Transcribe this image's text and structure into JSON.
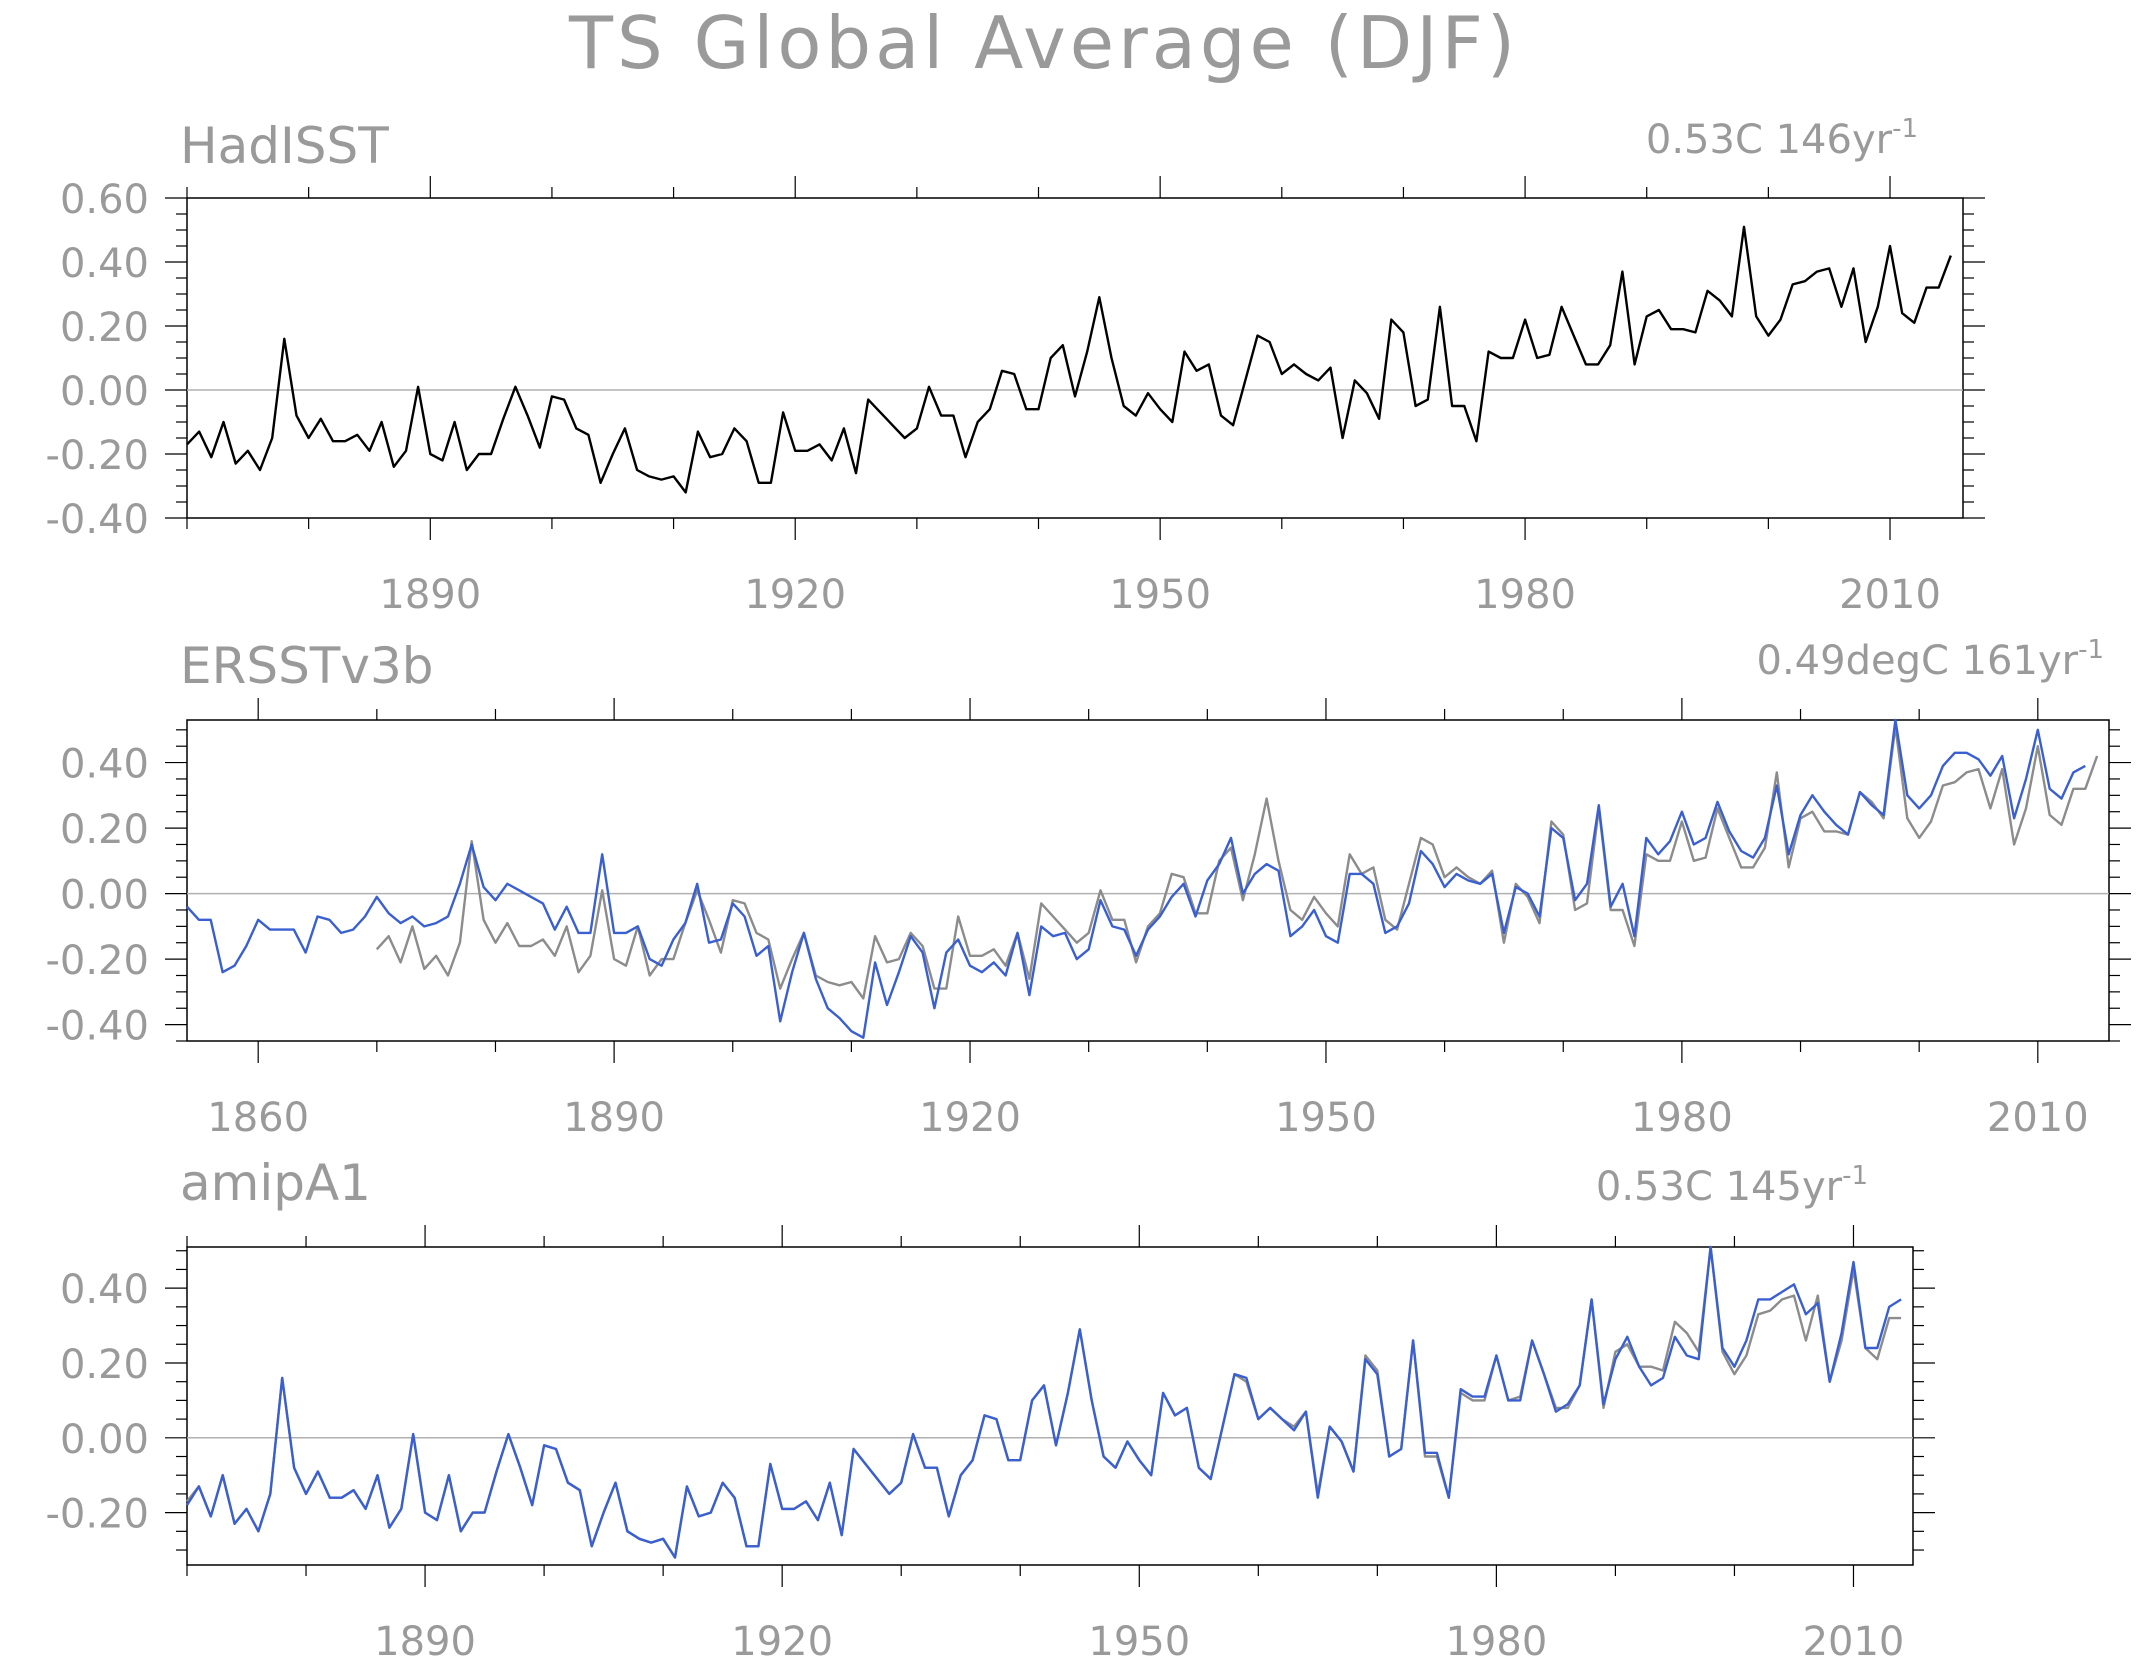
{
  "figure": {
    "title": "TS Global Average (DJF)",
    "colors": {
      "text": "#9a9a9a",
      "axis": "#000000",
      "zero_line": "#b0b0b0",
      "obs": "#000000",
      "obs_ref": "#8c8c8c",
      "model": "#3a5fd0"
    }
  },
  "chart_data": [
    {
      "type": "line",
      "title": "HadISST",
      "annotation": "0.53C 146yr",
      "annotation_superscript": "-1",
      "xlim": [
        1870,
        2016
      ],
      "ylim": [
        -0.4,
        0.6
      ],
      "yticks": [
        -0.4,
        -0.2,
        0.0,
        0.2,
        0.4,
        0.6
      ],
      "ytick_labels": [
        "-0.40",
        "-0.20",
        "0.00",
        "0.20",
        "0.40",
        "0.60"
      ],
      "xticks": [
        1890,
        1920,
        1950,
        1980,
        2010
      ],
      "xtick_labels": [
        "1890",
        "1920",
        "1950",
        "1980",
        "2010"
      ],
      "zero_line": true,
      "series": [
        {
          "color": "#000000",
          "x_start": 1870,
          "values": [
            -0.17,
            -0.13,
            -0.21,
            -0.1,
            -0.23,
            -0.19,
            -0.25,
            -0.15,
            0.16,
            -0.08,
            -0.15,
            -0.09,
            -0.16,
            -0.16,
            -0.14,
            -0.19,
            -0.1,
            -0.24,
            -0.19,
            0.01,
            -0.2,
            -0.22,
            -0.1,
            -0.25,
            -0.2,
            -0.2,
            -0.09,
            0.01,
            -0.08,
            -0.18,
            -0.02,
            -0.03,
            -0.12,
            -0.14,
            -0.29,
            -0.2,
            -0.12,
            -0.25,
            -0.27,
            -0.28,
            -0.27,
            -0.32,
            -0.13,
            -0.21,
            -0.2,
            -0.12,
            -0.16,
            -0.29,
            -0.29,
            -0.07,
            -0.19,
            -0.19,
            -0.17,
            -0.22,
            -0.12,
            -0.26,
            -0.03,
            -0.07,
            -0.11,
            -0.15,
            -0.12,
            0.01,
            -0.08,
            -0.08,
            -0.21,
            -0.1,
            -0.06,
            0.06,
            0.05,
            -0.06,
            -0.06,
            0.1,
            0.14,
            -0.02,
            0.12,
            0.29,
            0.1,
            -0.05,
            -0.08,
            -0.01,
            -0.06,
            -0.1,
            0.12,
            0.06,
            0.08,
            -0.08,
            -0.11,
            0.03,
            0.17,
            0.15,
            0.05,
            0.08,
            0.05,
            0.03,
            0.07,
            -0.15,
            0.03,
            -0.01,
            -0.09,
            0.22,
            0.18,
            -0.05,
            -0.03,
            0.26,
            -0.05,
            -0.05,
            -0.16,
            0.12,
            0.1,
            0.1,
            0.22,
            0.1,
            0.11,
            0.26,
            0.17,
            0.08,
            0.08,
            0.14,
            0.37,
            0.08,
            0.23,
            0.25,
            0.19,
            0.19,
            0.18,
            0.31,
            0.28,
            0.23,
            0.51,
            0.23,
            0.17,
            0.22,
            0.33,
            0.34,
            0.37,
            0.38,
            0.26,
            0.38,
            0.15,
            0.26,
            0.45,
            0.24,
            0.21,
            0.32,
            0.32,
            0.42
          ]
        }
      ]
    },
    {
      "type": "line",
      "title": "ERSSTv3b",
      "annotation": "0.49degC 161yr",
      "annotation_superscript": "-1",
      "xlim": [
        1854,
        2016
      ],
      "ylim": [
        -0.45,
        0.53
      ],
      "yticks": [
        -0.4,
        -0.2,
        0.0,
        0.2,
        0.4
      ],
      "ytick_labels": [
        "-0.40",
        "-0.20",
        "0.00",
        "0.20",
        "0.40"
      ],
      "xticks": [
        1860,
        1890,
        1920,
        1950,
        1980,
        2010
      ],
      "xtick_labels": [
        "1860",
        "1890",
        "1920",
        "1950",
        "1980",
        "2010"
      ],
      "zero_line": true,
      "series": [
        {
          "color": "#8c8c8c",
          "x_start": 1870,
          "values": [
            -0.17,
            -0.13,
            -0.21,
            -0.1,
            -0.23,
            -0.19,
            -0.25,
            -0.15,
            0.16,
            -0.08,
            -0.15,
            -0.09,
            -0.16,
            -0.16,
            -0.14,
            -0.19,
            -0.1,
            -0.24,
            -0.19,
            0.01,
            -0.2,
            -0.22,
            -0.1,
            -0.25,
            -0.2,
            -0.2,
            -0.09,
            0.01,
            -0.08,
            -0.18,
            -0.02,
            -0.03,
            -0.12,
            -0.14,
            -0.29,
            -0.2,
            -0.12,
            -0.25,
            -0.27,
            -0.28,
            -0.27,
            -0.32,
            -0.13,
            -0.21,
            -0.2,
            -0.12,
            -0.16,
            -0.29,
            -0.29,
            -0.07,
            -0.19,
            -0.19,
            -0.17,
            -0.22,
            -0.12,
            -0.26,
            -0.03,
            -0.07,
            -0.11,
            -0.15,
            -0.12,
            0.01,
            -0.08,
            -0.08,
            -0.21,
            -0.1,
            -0.06,
            0.06,
            0.05,
            -0.06,
            -0.06,
            0.1,
            0.14,
            -0.02,
            0.12,
            0.29,
            0.1,
            -0.05,
            -0.08,
            -0.01,
            -0.06,
            -0.1,
            0.12,
            0.06,
            0.08,
            -0.08,
            -0.11,
            0.03,
            0.17,
            0.15,
            0.05,
            0.08,
            0.05,
            0.03,
            0.07,
            -0.15,
            0.03,
            -0.01,
            -0.09,
            0.22,
            0.18,
            -0.05,
            -0.03,
            0.26,
            -0.05,
            -0.05,
            -0.16,
            0.12,
            0.1,
            0.1,
            0.22,
            0.1,
            0.11,
            0.26,
            0.17,
            0.08,
            0.08,
            0.14,
            0.37,
            0.08,
            0.23,
            0.25,
            0.19,
            0.19,
            0.18,
            0.31,
            0.28,
            0.23,
            0.51,
            0.23,
            0.17,
            0.22,
            0.33,
            0.34,
            0.37,
            0.38,
            0.26,
            0.38,
            0.15,
            0.26,
            0.45,
            0.24,
            0.21,
            0.32,
            0.32,
            0.42
          ]
        },
        {
          "color": "#3a5fd0",
          "x_start": 1854,
          "values": [
            -0.04,
            -0.08,
            -0.08,
            -0.24,
            -0.22,
            -0.16,
            -0.08,
            -0.11,
            -0.11,
            -0.11,
            -0.18,
            -0.07,
            -0.08,
            -0.12,
            -0.11,
            -0.07,
            -0.01,
            -0.06,
            -0.09,
            -0.07,
            -0.1,
            -0.09,
            -0.07,
            0.03,
            0.15,
            0.02,
            -0.02,
            0.03,
            0.01,
            -0.01,
            -0.03,
            -0.11,
            -0.04,
            -0.12,
            -0.12,
            0.12,
            -0.12,
            -0.12,
            -0.1,
            -0.2,
            -0.22,
            -0.14,
            -0.09,
            0.03,
            -0.15,
            -0.14,
            -0.03,
            -0.07,
            -0.19,
            -0.16,
            -0.39,
            -0.24,
            -0.12,
            -0.26,
            -0.35,
            -0.38,
            -0.42,
            -0.44,
            -0.21,
            -0.34,
            -0.24,
            -0.13,
            -0.18,
            -0.35,
            -0.18,
            -0.14,
            -0.22,
            -0.24,
            -0.21,
            -0.25,
            -0.12,
            -0.31,
            -0.1,
            -0.13,
            -0.12,
            -0.2,
            -0.17,
            -0.02,
            -0.1,
            -0.11,
            -0.19,
            -0.11,
            -0.07,
            -0.01,
            0.03,
            -0.07,
            0.04,
            0.09,
            0.17,
            0.0,
            0.06,
            0.09,
            0.07,
            -0.13,
            -0.1,
            -0.05,
            -0.13,
            -0.15,
            0.06,
            0.06,
            0.03,
            -0.12,
            -0.1,
            -0.03,
            0.13,
            0.09,
            0.02,
            0.06,
            0.04,
            0.03,
            0.06,
            -0.12,
            0.02,
            0.0,
            -0.07,
            0.2,
            0.17,
            -0.02,
            0.03,
            0.27,
            -0.04,
            0.03,
            -0.13,
            0.17,
            0.12,
            0.16,
            0.25,
            0.15,
            0.17,
            0.28,
            0.19,
            0.13,
            0.11,
            0.17,
            0.33,
            0.12,
            0.24,
            0.3,
            0.25,
            0.21,
            0.18,
            0.31,
            0.27,
            0.24,
            0.53,
            0.3,
            0.26,
            0.3,
            0.39,
            0.43,
            0.43,
            0.41,
            0.36,
            0.42,
            0.23,
            0.35,
            0.5,
            0.32,
            0.29,
            0.37,
            0.39
          ]
        }
      ]
    },
    {
      "type": "line",
      "title": "amipA1",
      "annotation": "0.53C 145yr",
      "annotation_superscript": "-1",
      "xlim": [
        1870,
        2015
      ],
      "ylim": [
        -0.34,
        0.51
      ],
      "yticks": [
        -0.2,
        0.0,
        0.2,
        0.4
      ],
      "ytick_labels": [
        "-0.20",
        "0.00",
        "0.20",
        "0.40"
      ],
      "xticks": [
        1890,
        1920,
        1950,
        1980,
        2010
      ],
      "xtick_labels": [
        "1890",
        "1920",
        "1950",
        "1980",
        "2010"
      ],
      "zero_line": true,
      "series": [
        {
          "color": "#8c8c8c",
          "x_start": 1870,
          "values": [
            -0.17,
            -0.13,
            -0.21,
            -0.1,
            -0.23,
            -0.19,
            -0.25,
            -0.15,
            0.16,
            -0.08,
            -0.15,
            -0.09,
            -0.16,
            -0.16,
            -0.14,
            -0.19,
            -0.1,
            -0.24,
            -0.19,
            0.01,
            -0.2,
            -0.22,
            -0.1,
            -0.25,
            -0.2,
            -0.2,
            -0.09,
            0.01,
            -0.08,
            -0.18,
            -0.02,
            -0.03,
            -0.12,
            -0.14,
            -0.29,
            -0.2,
            -0.12,
            -0.25,
            -0.27,
            -0.28,
            -0.27,
            -0.32,
            -0.13,
            -0.21,
            -0.2,
            -0.12,
            -0.16,
            -0.29,
            -0.29,
            -0.07,
            -0.19,
            -0.19,
            -0.17,
            -0.22,
            -0.12,
            -0.26,
            -0.03,
            -0.07,
            -0.11,
            -0.15,
            -0.12,
            0.01,
            -0.08,
            -0.08,
            -0.21,
            -0.1,
            -0.06,
            0.06,
            0.05,
            -0.06,
            -0.06,
            0.1,
            0.14,
            -0.02,
            0.12,
            0.29,
            0.1,
            -0.05,
            -0.08,
            -0.01,
            -0.06,
            -0.1,
            0.12,
            0.06,
            0.08,
            -0.08,
            -0.11,
            0.03,
            0.17,
            0.15,
            0.05,
            0.08,
            0.05,
            0.03,
            0.07,
            -0.15,
            0.03,
            -0.01,
            -0.09,
            0.22,
            0.18,
            -0.05,
            -0.03,
            0.26,
            -0.05,
            -0.05,
            -0.16,
            0.12,
            0.1,
            0.1,
            0.22,
            0.1,
            0.11,
            0.26,
            0.17,
            0.08,
            0.08,
            0.14,
            0.37,
            0.08,
            0.23,
            0.25,
            0.19,
            0.19,
            0.18,
            0.31,
            0.28,
            0.23,
            0.51,
            0.23,
            0.17,
            0.22,
            0.33,
            0.34,
            0.37,
            0.38,
            0.26,
            0.38,
            0.15,
            0.26,
            0.45,
            0.24,
            0.21,
            0.32,
            0.32
          ]
        },
        {
          "color": "#3a5fd0",
          "x_start": 1870,
          "values": [
            -0.18,
            -0.13,
            -0.21,
            -0.1,
            -0.23,
            -0.19,
            -0.25,
            -0.15,
            0.16,
            -0.08,
            -0.15,
            -0.09,
            -0.16,
            -0.16,
            -0.14,
            -0.19,
            -0.1,
            -0.24,
            -0.19,
            0.01,
            -0.2,
            -0.22,
            -0.1,
            -0.25,
            -0.2,
            -0.2,
            -0.09,
            0.01,
            -0.08,
            -0.18,
            -0.02,
            -0.03,
            -0.12,
            -0.14,
            -0.29,
            -0.2,
            -0.12,
            -0.25,
            -0.27,
            -0.28,
            -0.27,
            -0.32,
            -0.13,
            -0.21,
            -0.2,
            -0.12,
            -0.16,
            -0.29,
            -0.29,
            -0.07,
            -0.19,
            -0.19,
            -0.17,
            -0.22,
            -0.12,
            -0.26,
            -0.03,
            -0.07,
            -0.11,
            -0.15,
            -0.12,
            0.01,
            -0.08,
            -0.08,
            -0.21,
            -0.1,
            -0.06,
            0.06,
            0.05,
            -0.06,
            -0.06,
            0.1,
            0.14,
            -0.02,
            0.12,
            0.29,
            0.1,
            -0.05,
            -0.08,
            -0.01,
            -0.06,
            -0.1,
            0.12,
            0.06,
            0.08,
            -0.08,
            -0.11,
            0.03,
            0.17,
            0.16,
            0.05,
            0.08,
            0.05,
            0.02,
            0.07,
            -0.16,
            0.03,
            -0.01,
            -0.09,
            0.21,
            0.17,
            -0.05,
            -0.03,
            0.26,
            -0.04,
            -0.04,
            -0.16,
            0.13,
            0.11,
            0.11,
            0.22,
            0.1,
            0.1,
            0.26,
            0.17,
            0.07,
            0.09,
            0.14,
            0.37,
            0.09,
            0.21,
            0.27,
            0.19,
            0.14,
            0.16,
            0.27,
            0.22,
            0.21,
            0.51,
            0.24,
            0.19,
            0.26,
            0.37,
            0.37,
            0.39,
            0.41,
            0.33,
            0.36,
            0.15,
            0.28,
            0.47,
            0.24,
            0.24,
            0.35,
            0.37
          ]
        }
      ]
    }
  ]
}
